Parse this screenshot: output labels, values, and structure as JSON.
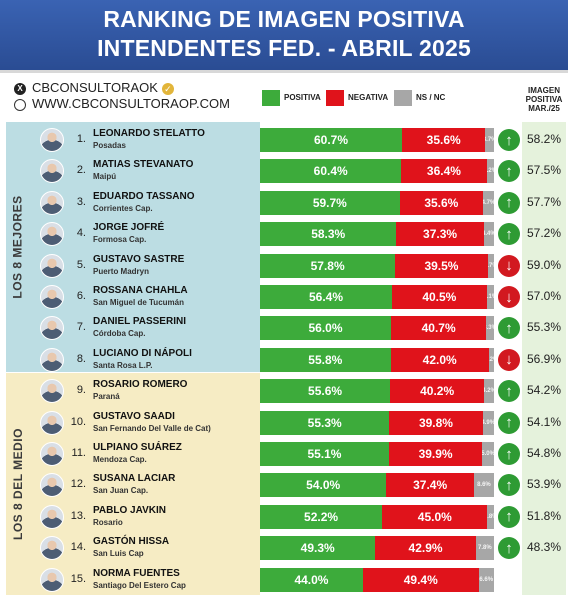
{
  "header": {
    "title_line1": "RANKING DE IMAGEN POSITIVA",
    "title_line2": "INTENDENTES FED. - ABRIL 2025"
  },
  "brand": {
    "handle": "CBCONSULTORAOK",
    "website": "WWW.CBCONSULTORAOP.COM",
    "icons": [
      "x-logo-icon",
      "verified-check-icon",
      "globe-icon"
    ]
  },
  "legend": {
    "positive": "POSITIVA",
    "negative": "NEGATIVA",
    "nsnc": "NS / NC",
    "image_header_line1": "IMAGEN",
    "image_header_line2": "POSITIVA",
    "image_header_line3": "MAR./25"
  },
  "sections": {
    "top": "LOS 8 MEJORES",
    "middle": "LOS 8 DEL MEDIO"
  },
  "colors": {
    "positive": "#3dab3b",
    "negative": "#e0131b",
    "nsnc": "#a7a7a7",
    "header": "#2f56a3",
    "section_top": "#bcdde3",
    "section_middle": "#f6ecc4",
    "prev_column": "#e5f2dc",
    "arrow_up": "#2e9b34",
    "arrow_down": "#d21920"
  },
  "chart_data": {
    "type": "bar",
    "stacked": true,
    "orientation": "horizontal",
    "title": "RANKING DE IMAGEN POSITIVA INTENDENTES FED. - ABRIL 2025",
    "series_names": [
      "POSITIVA",
      "NEGATIVA",
      "NS / NC"
    ],
    "rows": [
      {
        "rank": "1.",
        "name": "LEONARDO STELATTO",
        "city": "Posadas",
        "positive": 60.7,
        "negative": 35.6,
        "nsnc": 3.7,
        "trend": "up",
        "prev": "58.2%"
      },
      {
        "rank": "2.",
        "name": "MATIAS STEVANATO",
        "city": "Maipú",
        "positive": 60.4,
        "negative": 36.4,
        "nsnc": 3.2,
        "trend": "up",
        "prev": "57.5%"
      },
      {
        "rank": "3.",
        "name": "EDUARDO TASSANO",
        "city": "Corrientes Cap.",
        "positive": 59.7,
        "negative": 35.6,
        "nsnc": 4.7,
        "trend": "up",
        "prev": "57.7%"
      },
      {
        "rank": "4.",
        "name": "JORGE JOFRÉ",
        "city": "Formosa Cap.",
        "positive": 58.3,
        "negative": 37.3,
        "nsnc": 4.4,
        "trend": "up",
        "prev": "57.2%"
      },
      {
        "rank": "5.",
        "name": "GUSTAVO SASTRE",
        "city": "Puerto Madryn",
        "positive": 57.8,
        "negative": 39.5,
        "nsnc": 2.7,
        "trend": "down",
        "prev": "59.0%"
      },
      {
        "rank": "6.",
        "name": "ROSSANA CHAHLA",
        "city": "San Miguel de Tucumán",
        "positive": 56.4,
        "negative": 40.5,
        "nsnc": 3.1,
        "trend": "down",
        "prev": "57.0%"
      },
      {
        "rank": "7.",
        "name": "DANIEL PASSERINI",
        "city": "Córdoba Cap.",
        "positive": 56.0,
        "negative": 40.7,
        "nsnc": 3.3,
        "trend": "up",
        "prev": "55.3%"
      },
      {
        "rank": "8.",
        "name": "LUCIANO DI NÁPOLI",
        "city": "Santa Rosa L.P.",
        "positive": 55.8,
        "negative": 42.0,
        "nsnc": 2.2,
        "trend": "down",
        "prev": "56.9%"
      },
      {
        "rank": "9.",
        "name": "ROSARIO ROMERO",
        "city": "Paraná",
        "positive": 55.6,
        "negative": 40.2,
        "nsnc": 4.2,
        "trend": "up",
        "prev": "54.2%"
      },
      {
        "rank": "10.",
        "name": "GUSTAVO SAADI",
        "city": "San Fernando Del Valle de Cat)",
        "positive": 55.3,
        "negative": 39.8,
        "nsnc": 4.9,
        "trend": "up",
        "prev": "54.1%"
      },
      {
        "rank": "11.",
        "name": "ULPIANO SUÁREZ",
        "city": "Mendoza Cap.",
        "positive": 55.1,
        "negative": 39.9,
        "nsnc": 5.0,
        "trend": "up",
        "prev": "54.8%"
      },
      {
        "rank": "12.",
        "name": "SUSANA LACIAR",
        "city": "San Juan Cap.",
        "positive": 54.0,
        "negative": 37.4,
        "nsnc": 8.6,
        "trend": "up",
        "prev": "53.9%"
      },
      {
        "rank": "13.",
        "name": "PABLO JAVKIN",
        "city": "Rosario",
        "positive": 52.2,
        "negative": 45.0,
        "nsnc": 2.8,
        "trend": "up",
        "prev": "51.8%"
      },
      {
        "rank": "14.",
        "name": "GASTÓN HISSA",
        "city": "San Luis Cap",
        "positive": 49.3,
        "negative": 42.9,
        "nsnc": 7.8,
        "trend": "up",
        "prev": "48.3%"
      },
      {
        "rank": "15.",
        "name": "NORMA FUENTES",
        "city": "Santiago Del Estero Cap",
        "positive": 44.0,
        "negative": 49.4,
        "nsnc": 6.6,
        "trend": "none",
        "prev": ""
      }
    ]
  }
}
